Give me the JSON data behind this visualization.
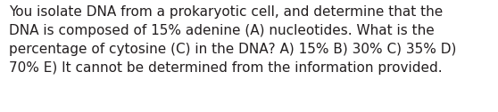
{
  "lines": [
    "You isolate DNA from a prokaryotic cell, and determine that the",
    "DNA is composed of 15% adenine (A) nucleotides. What is the",
    "percentage of cytosine (C) in the DNA? A) 15% B) 30% C) 35% D)",
    "70% E) It cannot be determined from the information provided."
  ],
  "background_color": "#ffffff",
  "text_color": "#231f20",
  "font_size": 11.0,
  "fig_width": 5.58,
  "fig_height": 1.26,
  "dpi": 100
}
